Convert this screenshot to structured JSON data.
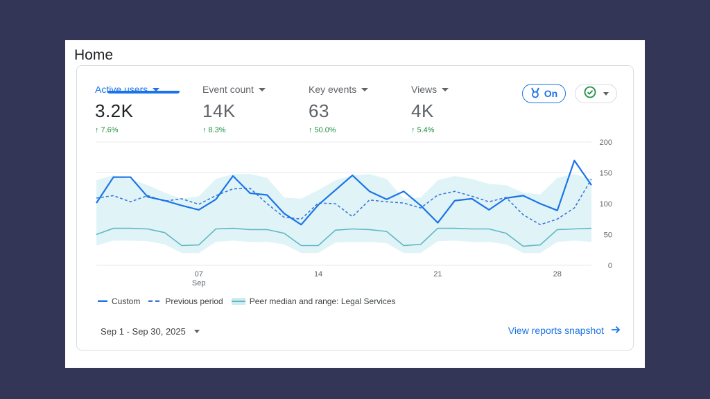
{
  "page": {
    "title": "Home"
  },
  "metrics": [
    {
      "label": "Active users",
      "value": "3.2K",
      "change": "7.6%"
    },
    {
      "label": "Event count",
      "value": "14K",
      "change": "8.3%"
    },
    {
      "label": "Key events",
      "value": "63",
      "change": "50.0%"
    },
    {
      "label": "Views",
      "value": "4K",
      "change": "5.4%"
    }
  ],
  "toolbar": {
    "insights_label": "On"
  },
  "legend": {
    "custom": "Custom",
    "previous": "Previous period",
    "peer": "Peer median and range: Legal Services"
  },
  "footer": {
    "date_range": "Sep 1 - Sep 30, 2025",
    "snapshot_link": "View reports snapshot"
  },
  "colors": {
    "accent": "#1a73e8",
    "custom_line": "#1a73e8",
    "previous_line": "#3b78d8",
    "peer_median": "#5fb7c4",
    "peer_band": "#e0f4f7",
    "positive": "#1e8e3e"
  },
  "chart_data": {
    "type": "line",
    "x_ticks": [
      {
        "day": 7,
        "label": "07",
        "sublabel": "Sep"
      },
      {
        "day": 14,
        "label": "14",
        "sublabel": ""
      },
      {
        "day": 21,
        "label": "21",
        "sublabel": ""
      },
      {
        "day": 28,
        "label": "28",
        "sublabel": ""
      }
    ],
    "y_ticks": [
      0,
      50,
      100,
      150,
      200
    ],
    "ylim": [
      0,
      200
    ],
    "xlim": [
      1,
      30
    ],
    "grid": true,
    "legend_position": "bottom-left",
    "x": [
      1,
      2,
      3,
      4,
      5,
      6,
      7,
      8,
      9,
      10,
      11,
      12,
      13,
      14,
      15,
      16,
      17,
      18,
      19,
      20,
      21,
      22,
      23,
      24,
      25,
      26,
      27,
      28,
      29,
      30
    ],
    "series": [
      {
        "name": "Custom",
        "style": "solid",
        "values": [
          101,
          143,
          143,
          111,
          105,
          97,
          90,
          107,
          145,
          117,
          114,
          84,
          66,
          98,
          122,
          146,
          120,
          107,
          120,
          97,
          69,
          105,
          108,
          90,
          109,
          113,
          100,
          89,
          170,
          130
        ]
      },
      {
        "name": "Previous period",
        "style": "dashed",
        "values": [
          109,
          113,
          103,
          113,
          104,
          108,
          99,
          113,
          124,
          125,
          100,
          78,
          75,
          101,
          100,
          79,
          106,
          103,
          101,
          93,
          114,
          120,
          112,
          103,
          110,
          82,
          66,
          75,
          93,
          140
        ]
      },
      {
        "name": "Peer median and range: Legal Services",
        "style": "band",
        "median": [
          50,
          60,
          60,
          59,
          53,
          32,
          33,
          59,
          60,
          58,
          58,
          52,
          32,
          32,
          57,
          59,
          58,
          55,
          32,
          34,
          60,
          60,
          59,
          59,
          52,
          31,
          33,
          58,
          59,
          60
        ],
        "low": [
          32,
          40,
          40,
          39,
          34,
          20,
          20,
          38,
          40,
          38,
          38,
          34,
          20,
          20,
          37,
          38,
          38,
          36,
          20,
          20,
          39,
          40,
          38,
          38,
          34,
          20,
          20,
          38,
          40,
          38
        ],
        "high": [
          138,
          146,
          140,
          130,
          118,
          108,
          112,
          140,
          148,
          148,
          142,
          110,
          108,
          122,
          138,
          146,
          148,
          140,
          108,
          110,
          138,
          145,
          140,
          132,
          130,
          118,
          115,
          142,
          148,
          140
        ]
      }
    ]
  }
}
